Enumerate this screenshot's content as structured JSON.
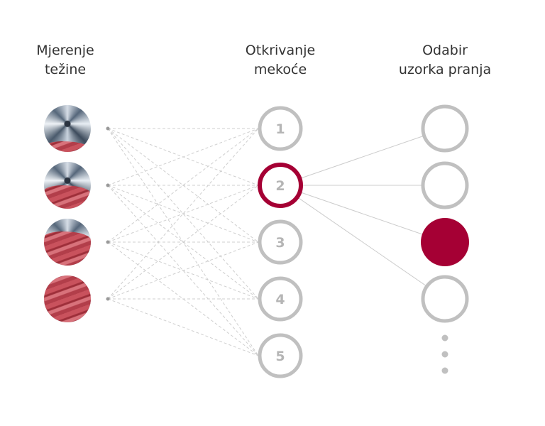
{
  "columns": {
    "weight": {
      "line1": "Mjerenje",
      "line2": "težine"
    },
    "softness": {
      "line1": "Otkrivanje",
      "line2": "mekoće"
    },
    "pattern": {
      "line1": "Odabir",
      "line2": "uzorka pranja"
    }
  },
  "weight_levels": [
    {
      "laundry_fill_percent": 22
    },
    {
      "laundry_fill_percent": 50
    },
    {
      "laundry_fill_percent": 72
    },
    {
      "laundry_fill_percent": 100
    }
  ],
  "softness_levels": [
    "1",
    "2",
    "3",
    "4",
    "5"
  ],
  "selected_softness": "2",
  "pattern_options": [
    {
      "selected": false
    },
    {
      "selected": false
    },
    {
      "selected": true
    },
    {
      "selected": false
    }
  ],
  "more_options": "ellipsis-vertical",
  "colors": {
    "accent": "#a50034",
    "inactive": "#c0c0c0",
    "number": "#b5b5b5",
    "line": "#cccccc"
  }
}
